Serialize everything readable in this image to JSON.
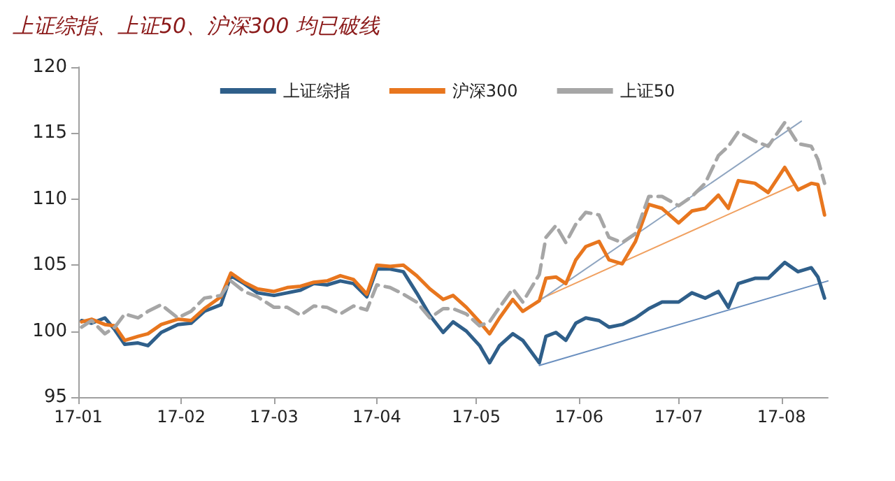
{
  "chart_data": {
    "type": "line",
    "title": "上证综指、上证50、沪深300 均已破线",
    "x": [
      "--01-02",
      "--01-05",
      "--01-09",
      "--01-12",
      "--01-15",
      "--01-19",
      "--01-22",
      "--01-26",
      "--01-31",
      "--02-04",
      "--02-08",
      "--02-13",
      "--02-16",
      "--02-20",
      "--02-24",
      "--03-01",
      "--03-05",
      "--03-09",
      "--03-13",
      "--03-17",
      "--03-21",
      "--03-25",
      "--03-29",
      "--04-01",
      "--04-05",
      "--04-09",
      "--04-13",
      "--04-17",
      "--04-21",
      "--04-24",
      "--04-28",
      "--05-02",
      "--05-05",
      "--05-08",
      "--05-12",
      "--05-15",
      "--05-20",
      "--05-22",
      "--05-25",
      "--05-28",
      "--05-31",
      "--06-03",
      "--06-07",
      "--06-10",
      "--06-14",
      "--06-18",
      "--06-22",
      "--06-26",
      "--07-01",
      "--07-05",
      "--07-09",
      "--07-13",
      "--07-16",
      "--07-19",
      "--07-24",
      "--07-28",
      "--08-02",
      "--08-06",
      "--08-10",
      "--08-12",
      "--08-14"
    ],
    "series": [
      {
        "name": "上证综指",
        "color": "#2f5f8a",
        "values": [
          100.8,
          100.6,
          101.0,
          100.1,
          99.0,
          99.1,
          98.9,
          99.9,
          100.5,
          100.6,
          101.5,
          102.0,
          104.2,
          103.6,
          102.9,
          102.7,
          102.9,
          103.1,
          103.6,
          103.5,
          103.8,
          103.6,
          102.6,
          104.7,
          104.7,
          104.5,
          102.9,
          101.2,
          99.9,
          100.7,
          100.0,
          98.9,
          97.6,
          98.9,
          99.8,
          99.3,
          97.6,
          99.6,
          99.9,
          99.3,
          100.6,
          101.0,
          100.8,
          100.3,
          100.5,
          101.0,
          101.7,
          102.2,
          102.2,
          102.9,
          102.5,
          103.0,
          101.8,
          103.6,
          104.0,
          104.0,
          105.2,
          104.5,
          104.8,
          104.1,
          102.5
        ]
      },
      {
        "name": "沪深300",
        "color": "#e8761e",
        "values": [
          100.7,
          100.9,
          100.5,
          100.4,
          99.3,
          99.6,
          99.8,
          100.5,
          100.9,
          100.8,
          101.7,
          102.6,
          104.4,
          103.7,
          103.2,
          103.0,
          103.3,
          103.4,
          103.7,
          103.8,
          104.2,
          103.9,
          102.8,
          105.0,
          104.9,
          105.0,
          104.2,
          103.2,
          102.4,
          102.7,
          101.8,
          100.7,
          99.8,
          101.0,
          102.4,
          101.5,
          102.3,
          104.0,
          104.1,
          103.6,
          105.4,
          106.4,
          106.8,
          105.4,
          105.1,
          106.8,
          109.6,
          109.3,
          108.2,
          109.1,
          109.3,
          110.3,
          109.3,
          111.4,
          111.2,
          110.5,
          112.4,
          110.7,
          111.2,
          111.1,
          108.8
        ]
      },
      {
        "name": "上证50",
        "color": "#a6a6a6",
        "line_style": "dashed",
        "values": [
          100.3,
          100.8,
          99.8,
          100.3,
          101.3,
          101.0,
          101.5,
          102.0,
          101.0,
          101.5,
          102.5,
          102.7,
          103.8,
          103.0,
          102.6,
          101.8,
          101.8,
          101.2,
          101.9,
          101.8,
          101.3,
          101.9,
          101.6,
          103.5,
          103.3,
          102.8,
          102.2,
          101.0,
          101.7,
          101.7,
          101.3,
          100.4,
          100.7,
          101.8,
          103.2,
          102.2,
          104.3,
          107.1,
          108.0,
          106.7,
          108.1,
          109.0,
          108.8,
          107.1,
          106.7,
          107.4,
          110.2,
          110.2,
          109.5,
          110.2,
          111.2,
          113.3,
          114.0,
          115.1,
          114.4,
          114.0,
          115.8,
          114.2,
          114.0,
          113.0,
          111.2
        ]
      },
      {
        "type": "line",
        "color": "#6a8fbf",
        "x": [
          "--05-20",
          "--08-15"
        ],
        "values": [
          97.4,
          103.8
        ]
      },
      {
        "type": "line",
        "color": "#f0a060",
        "x": [
          "--05-20",
          "--08-05"
        ],
        "values": [
          102.4,
          111.1
        ]
      },
      {
        "type": "line",
        "color": "#8fa5c0",
        "x": [
          "--05-20",
          "--08-07"
        ],
        "values": [
          102.3,
          115.9
        ]
      }
    ],
    "xlim": [
      "--01-01",
      "--08-15"
    ],
    "xticks": [
      {
        "value": "--01-01",
        "label": "17-01"
      },
      {
        "value": "--02-01",
        "label": "17-02"
      },
      {
        "value": "--03-01",
        "label": "17-03"
      },
      {
        "value": "--04-01",
        "label": "17-04"
      },
      {
        "value": "--05-01",
        "label": "17-05"
      },
      {
        "value": "--06-01",
        "label": "17-06"
      },
      {
        "value": "--07-01",
        "label": "17-07"
      },
      {
        "value": "--08-01",
        "label": "17-08"
      }
    ],
    "ylim": [
      95,
      120
    ],
    "yticks": [
      95,
      100,
      105,
      110,
      115,
      120
    ],
    "grid": false,
    "legend": "top",
    "marker": "none",
    "line_style": "solid"
  }
}
